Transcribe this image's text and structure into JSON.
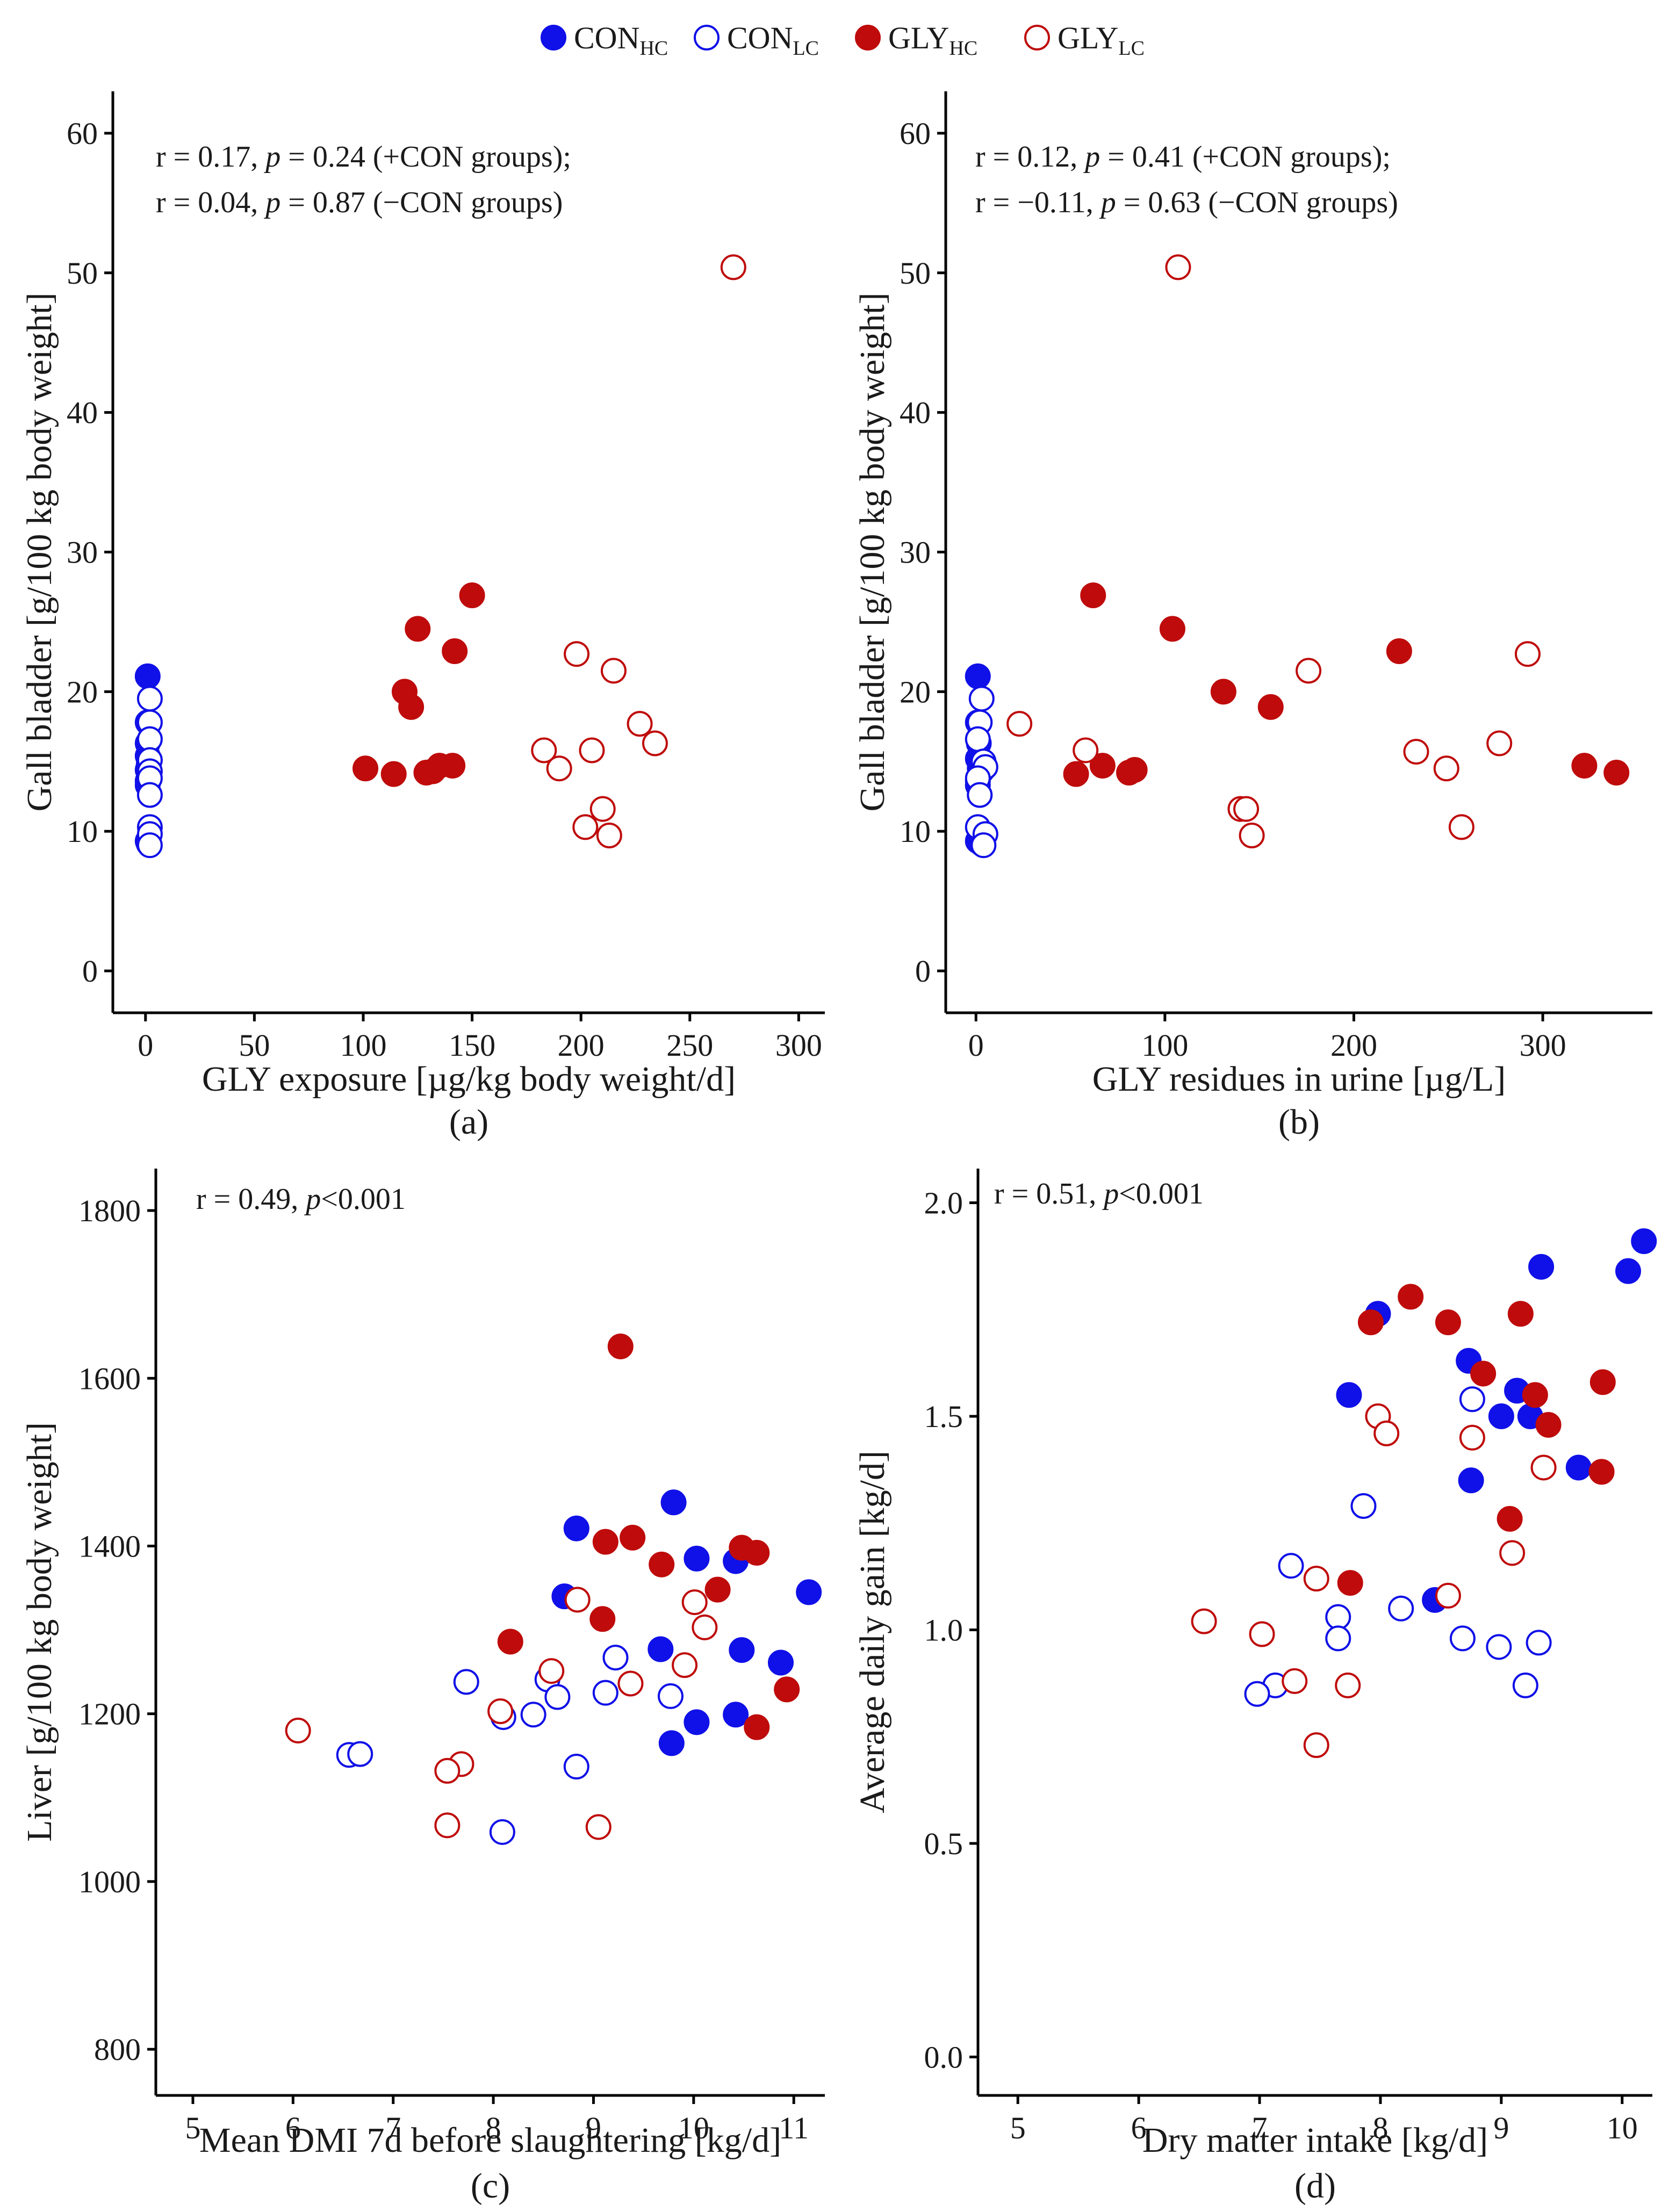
{
  "colors": {
    "con": "#1010e8",
    "gly": "#bf0b0b"
  },
  "legend": [
    {
      "base": "CON",
      "sub": "HC",
      "group": "con",
      "filled": true
    },
    {
      "base": "CON",
      "sub": "LC",
      "group": "con",
      "filled": false
    },
    {
      "base": "GLY",
      "sub": "HC",
      "group": "gly",
      "filled": true
    },
    {
      "base": "GLY",
      "sub": "LC",
      "group": "gly",
      "filled": false
    }
  ],
  "chart_data": [
    {
      "type": "scatter",
      "panel_label": "(a)",
      "xlabel": "GLY exposure [µg/kg body weight/d]",
      "ylabel": "Gall bladder [g/100 kg body weight]",
      "xlim": [
        -15,
        312
      ],
      "ylim": [
        -3,
        63
      ],
      "xticks": [
        0,
        50,
        100,
        150,
        200,
        250,
        300
      ],
      "yticks": [
        0,
        10,
        20,
        30,
        40,
        50,
        60
      ],
      "annotation": [
        {
          "pre": "r = 0.17, ",
          "italic": "p",
          "post": " = 0.24 (+CON groups);"
        },
        {
          "pre": "r = 0.04, ",
          "italic": "p",
          "post": " = 0.87 (−CON groups)"
        }
      ],
      "series": [
        {
          "name": "CONHC",
          "points": [
            [
              1,
              21.1
            ],
            [
              1,
              17.8
            ],
            [
              1,
              16.3
            ],
            [
              1,
              15.4
            ],
            [
              1.5,
              14.8
            ],
            [
              1,
              14.4
            ],
            [
              1.5,
              14.1
            ],
            [
              1,
              13.6
            ],
            [
              1,
              13.3
            ],
            [
              1,
              9.3
            ],
            [
              1.5,
              9.1
            ]
          ]
        },
        {
          "name": "CONLC",
          "points": [
            [
              2,
              19.5
            ],
            [
              2,
              17.8
            ],
            [
              2,
              16.6
            ],
            [
              2,
              15.1
            ],
            [
              2,
              14.3
            ],
            [
              2,
              13.8
            ],
            [
              2,
              12.6
            ],
            [
              2,
              10.3
            ],
            [
              2,
              9.8
            ],
            [
              2,
              9.0
            ]
          ]
        },
        {
          "name": "GLYHC",
          "points": [
            [
              150,
              26.9
            ],
            [
              125,
              24.5
            ],
            [
              142,
              22.9
            ],
            [
              119,
              20.0
            ],
            [
              122,
              18.9
            ],
            [
              101,
              14.5
            ],
            [
              114,
              14.1
            ],
            [
              129,
              14.2
            ],
            [
              132,
              14.3
            ],
            [
              135,
              14.7
            ],
            [
              141,
              14.7
            ]
          ]
        },
        {
          "name": "GLYLC",
          "points": [
            [
              270,
              50.4
            ],
            [
              198,
              22.7
            ],
            [
              215,
              21.5
            ],
            [
              227,
              17.7
            ],
            [
              234,
              16.3
            ],
            [
              183,
              15.8
            ],
            [
              205,
              15.8
            ],
            [
              190,
              14.5
            ],
            [
              210,
              11.6
            ],
            [
              202,
              10.3
            ],
            [
              213,
              9.7
            ]
          ]
        }
      ]
    },
    {
      "type": "scatter",
      "panel_label": "(b)",
      "xlabel": "GLY residues in urine [µg/L]",
      "ylabel": "Gall bladder [g/100 kg body weight]",
      "xlim": [
        -16,
        358
      ],
      "ylim": [
        -3,
        63
      ],
      "xticks": [
        0,
        100,
        200,
        300
      ],
      "yticks": [
        0,
        10,
        20,
        30,
        40,
        50,
        60
      ],
      "annotation": [
        {
          "pre": "r = 0.12, ",
          "italic": "p",
          "post": " = 0.41 (+CON groups);"
        },
        {
          "pre": "r = −0.11, ",
          "italic": "p",
          "post": " = 0.63 (−CON groups)"
        }
      ],
      "series": [
        {
          "name": "CONHC",
          "points": [
            [
              1,
              21.1
            ],
            [
              1,
              17.8
            ],
            [
              1.5,
              16.3
            ],
            [
              1,
              15.2
            ],
            [
              2,
              14.5
            ],
            [
              3,
              14.3
            ],
            [
              1,
              13.6
            ],
            [
              1,
              13.3
            ],
            [
              1,
              9.3
            ],
            [
              3,
              9.1
            ]
          ]
        },
        {
          "name": "CONLC",
          "points": [
            [
              3,
              19.5
            ],
            [
              2,
              17.8
            ],
            [
              1,
              16.6
            ],
            [
              4,
              15.0
            ],
            [
              5,
              14.6
            ],
            [
              1,
              13.8
            ],
            [
              2,
              12.6
            ],
            [
              1,
              10.3
            ],
            [
              5,
              9.8
            ],
            [
              4,
              9.0
            ]
          ]
        },
        {
          "name": "GLYHC",
          "points": [
            [
              62,
              26.9
            ],
            [
              104,
              24.5
            ],
            [
              224,
              22.9
            ],
            [
              131,
              20.0
            ],
            [
              156,
              18.9
            ],
            [
              67,
              14.7
            ],
            [
              53,
              14.1
            ],
            [
              81,
              14.2
            ],
            [
              84,
              14.4
            ],
            [
              322,
              14.7
            ],
            [
              339,
              14.2
            ]
          ]
        },
        {
          "name": "GLYLC",
          "points": [
            [
              107,
              50.4
            ],
            [
              292,
              22.7
            ],
            [
              176,
              21.5
            ],
            [
              23,
              17.7
            ],
            [
              277,
              16.3
            ],
            [
              58,
              15.8
            ],
            [
              233,
              15.7
            ],
            [
              249,
              14.5
            ],
            [
              140,
              11.6
            ],
            [
              143,
              11.6
            ],
            [
              257,
              10.3
            ],
            [
              146,
              9.7
            ]
          ]
        }
      ]
    },
    {
      "type": "scatter",
      "panel_label": "(c)",
      "xlabel": "Mean DMI 7d before slaughtering [kg/d]",
      "ylabel": "Liver [g/100 kg body weight]",
      "xlim": [
        4.63,
        11.31
      ],
      "ylim": [
        745,
        1850
      ],
      "xticks": [
        5,
        6,
        7,
        8,
        9,
        10,
        11
      ],
      "yticks": [
        800,
        1000,
        1200,
        1400,
        1600,
        1800
      ],
      "annotation": [
        {
          "pre": "r = 0.49, ",
          "italic": "p",
          "post": "<0.001"
        }
      ],
      "series": [
        {
          "name": "CONHC",
          "points": [
            [
              9.8,
              1452
            ],
            [
              8.83,
              1421
            ],
            [
              10.03,
              1385
            ],
            [
              10.42,
              1382
            ],
            [
              8.71,
              1340
            ],
            [
              11.15,
              1345
            ],
            [
              9.67,
              1277
            ],
            [
              10.48,
              1276
            ],
            [
              10.87,
              1261
            ],
            [
              10.42,
              1199
            ],
            [
              10.03,
              1190
            ],
            [
              9.78,
              1165
            ]
          ]
        },
        {
          "name": "CONLC",
          "points": [
            [
              7.73,
              1238
            ],
            [
              9.22,
              1267
            ],
            [
              8.54,
              1241
            ],
            [
              9.12,
              1225
            ],
            [
              8.64,
              1220
            ],
            [
              9.77,
              1221
            ],
            [
              8.1,
              1196
            ],
            [
              8.4,
              1199
            ],
            [
              8.83,
              1137
            ],
            [
              6.56,
              1151
            ],
            [
              6.67,
              1152
            ],
            [
              8.09,
              1059
            ]
          ]
        },
        {
          "name": "GLYHC",
          "points": [
            [
              9.27,
              1638
            ],
            [
              9.12,
              1405
            ],
            [
              9.39,
              1410
            ],
            [
              9.68,
              1378
            ],
            [
              10.48,
              1398
            ],
            [
              10.63,
              1392
            ],
            [
              10.24,
              1348
            ],
            [
              9.09,
              1313
            ],
            [
              8.17,
              1286
            ],
            [
              10.93,
              1229
            ],
            [
              10.63,
              1184
            ]
          ]
        },
        {
          "name": "GLYLC",
          "points": [
            [
              8.84,
              1336
            ],
            [
              10.01,
              1333
            ],
            [
              10.11,
              1303
            ],
            [
              9.91,
              1258
            ],
            [
              8.58,
              1251
            ],
            [
              9.37,
              1236
            ],
            [
              8.07,
              1203
            ],
            [
              6.05,
              1180
            ],
            [
              7.68,
              1140
            ],
            [
              7.54,
              1132
            ],
            [
              7.54,
              1067
            ],
            [
              9.05,
              1065
            ]
          ]
        }
      ]
    },
    {
      "type": "scatter",
      "panel_label": "(d)",
      "xlabel": "Dry matter intake [kg/d]",
      "ylabel": "Average daily gain [kg/d]",
      "xlim": [
        4.67,
        10.25
      ],
      "ylim": [
        -0.09,
        2.08
      ],
      "xticks": [
        5,
        6,
        7,
        8,
        9,
        10
      ],
      "yticks": [
        0.0,
        0.5,
        1.0,
        1.5,
        2.0
      ],
      "annotation": [
        {
          "pre": "r = 0.51, ",
          "italic": "p",
          "post": "<0.001"
        }
      ],
      "series": [
        {
          "name": "CONHC",
          "points": [
            [
              10.18,
              1.91
            ],
            [
              9.33,
              1.85
            ],
            [
              10.05,
              1.84
            ],
            [
              7.98,
              1.74
            ],
            [
              8.73,
              1.63
            ],
            [
              9.13,
              1.56
            ],
            [
              7.74,
              1.55
            ],
            [
              9.0,
              1.5
            ],
            [
              9.24,
              1.5
            ],
            [
              9.64,
              1.38
            ],
            [
              8.75,
              1.35
            ],
            [
              8.45,
              1.07
            ]
          ]
        },
        {
          "name": "CONLC",
          "points": [
            [
              8.76,
              1.54
            ],
            [
              7.86,
              1.29
            ],
            [
              7.26,
              1.15
            ],
            [
              7.65,
              1.03
            ],
            [
              8.17,
              1.05
            ],
            [
              7.65,
              0.98
            ],
            [
              8.68,
              0.98
            ],
            [
              8.98,
              0.96
            ],
            [
              9.31,
              0.97
            ],
            [
              7.13,
              0.87
            ],
            [
              6.98,
              0.85
            ],
            [
              9.2,
              0.87
            ]
          ]
        },
        {
          "name": "GLYHC",
          "points": [
            [
              8.25,
              1.78
            ],
            [
              7.92,
              1.72
            ],
            [
              8.56,
              1.72
            ],
            [
              9.16,
              1.74
            ],
            [
              8.85,
              1.6
            ],
            [
              9.84,
              1.58
            ],
            [
              9.28,
              1.55
            ],
            [
              9.39,
              1.48
            ],
            [
              9.83,
              1.37
            ],
            [
              9.07,
              1.26
            ],
            [
              7.75,
              1.11
            ]
          ]
        },
        {
          "name": "GLYLC",
          "points": [
            [
              7.98,
              1.5
            ],
            [
              8.05,
              1.46
            ],
            [
              8.76,
              1.45
            ],
            [
              9.35,
              1.38
            ],
            [
              9.09,
              1.18
            ],
            [
              7.47,
              1.12
            ],
            [
              8.56,
              1.08
            ],
            [
              6.54,
              1.02
            ],
            [
              7.02,
              0.99
            ],
            [
              7.29,
              0.88
            ],
            [
              7.73,
              0.87
            ],
            [
              7.47,
              0.73
            ]
          ]
        }
      ]
    }
  ]
}
